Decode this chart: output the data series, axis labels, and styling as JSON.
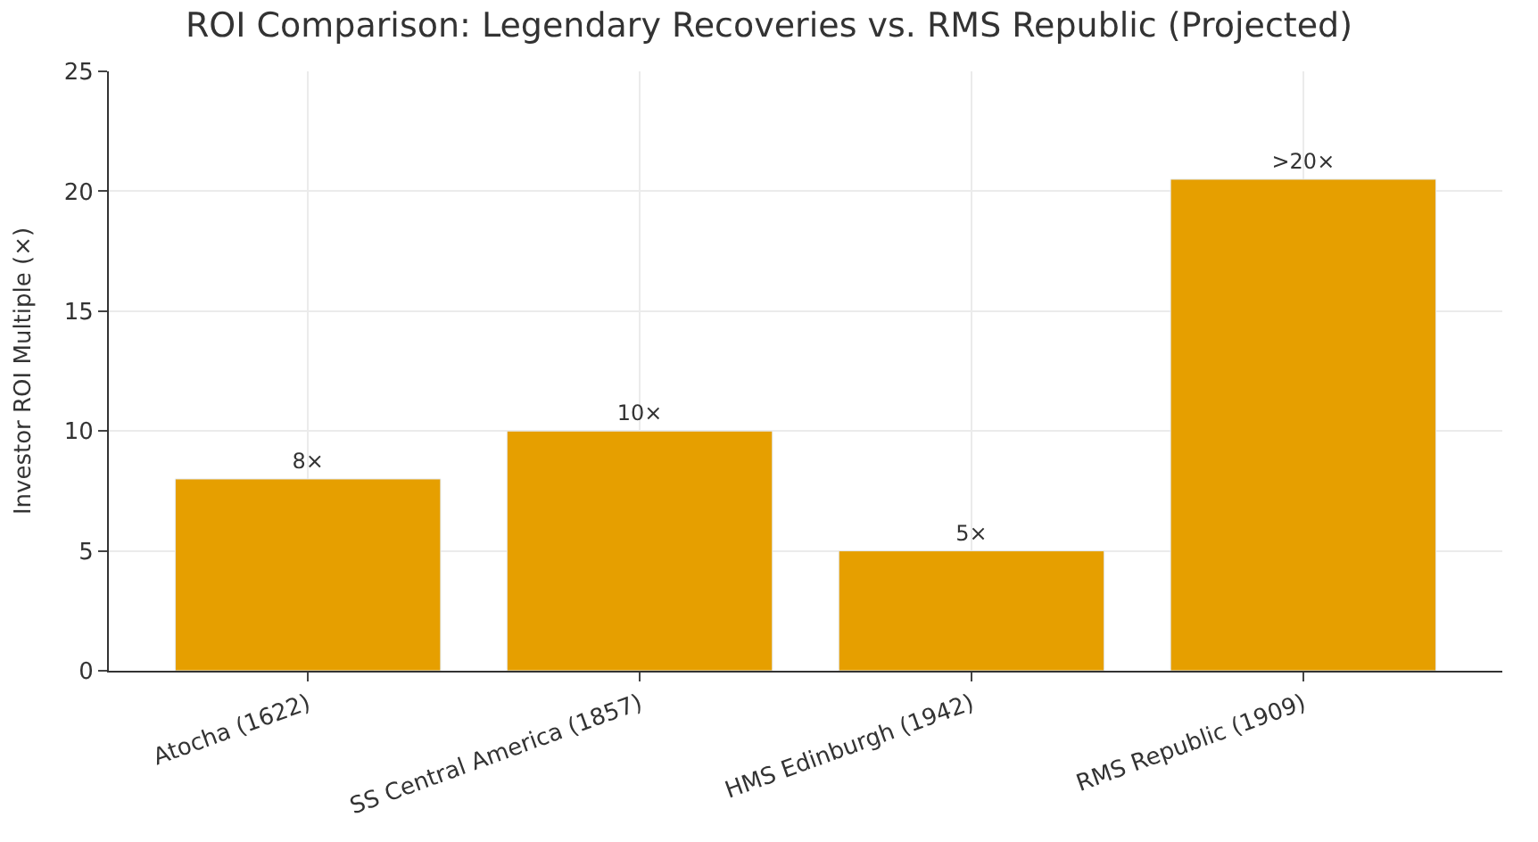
{
  "chart_data": {
    "type": "bar",
    "title": "ROI Comparison: Legendary Recoveries vs. RMS Republic (Projected)",
    "ylabel": "Investor ROI Multiple (×)",
    "categories": [
      "Atocha (1622)",
      "SS Central America (1857)",
      "HMS Edinburgh (1942)",
      "RMS Republic (1909)"
    ],
    "values": [
      8,
      10,
      5,
      20.5
    ],
    "value_labels": [
      "8×",
      "10×",
      "5×",
      ">20×"
    ],
    "color": "#e69f00",
    "ylim": [
      0,
      25
    ],
    "yticks": [
      0,
      5,
      10,
      15,
      20,
      25
    ],
    "grid": true,
    "legend": false
  }
}
